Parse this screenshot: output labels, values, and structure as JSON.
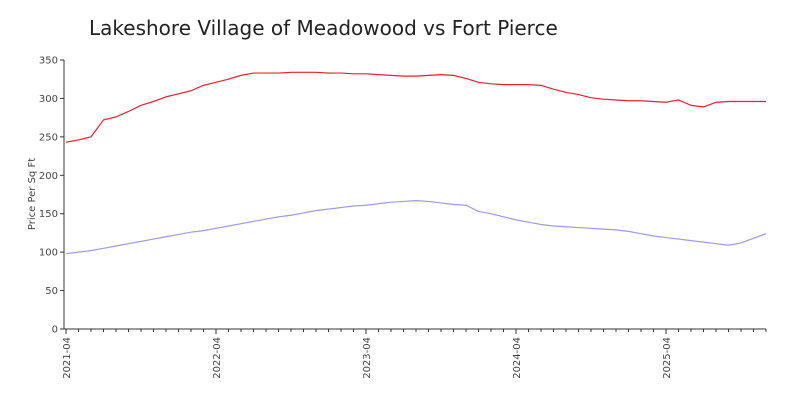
{
  "chart_data": {
    "type": "line",
    "title": "Lakeshore Village of Meadowood vs Fort Pierce",
    "xlabel": "",
    "ylabel": "Price Per Sq Ft",
    "ylim": [
      0,
      350
    ],
    "yticks": [
      0,
      50,
      100,
      150,
      200,
      250,
      300,
      350
    ],
    "xticks": [
      "2021-04",
      "2022-04",
      "2023-04",
      "2024-04",
      "2025-04"
    ],
    "grid": false,
    "legend": "none",
    "x": [
      "2021-04",
      "2021-05",
      "2021-06",
      "2021-07",
      "2021-08",
      "2021-09",
      "2021-10",
      "2021-11",
      "2021-12",
      "2022-01",
      "2022-02",
      "2022-03",
      "2022-04",
      "2022-05",
      "2022-06",
      "2022-07",
      "2022-08",
      "2022-09",
      "2022-10",
      "2022-11",
      "2022-12",
      "2023-01",
      "2023-02",
      "2023-03",
      "2023-04",
      "2023-05",
      "2023-06",
      "2023-07",
      "2023-08",
      "2023-09",
      "2023-10",
      "2023-11",
      "2023-12",
      "2024-01",
      "2024-02",
      "2024-03",
      "2024-04",
      "2024-05",
      "2024-06",
      "2024-07",
      "2024-08",
      "2024-09",
      "2024-10",
      "2024-11",
      "2024-12",
      "2025-01",
      "2025-02",
      "2025-03",
      "2025-04",
      "2025-05",
      "2025-06",
      "2025-07",
      "2025-08",
      "2025-09",
      "2025-10",
      "2025-11",
      "2025-12"
    ],
    "series": [
      {
        "color": "#e8202a",
        "values": [
          243,
          246,
          250,
          272,
          276,
          283,
          291,
          296,
          302,
          306,
          310,
          317,
          321,
          325,
          330,
          333,
          333,
          333,
          334,
          334,
          334,
          333,
          333,
          332,
          332,
          331,
          330,
          329,
          329,
          330,
          331,
          330,
          326,
          321,
          319,
          318,
          318,
          318,
          317,
          312,
          308,
          305,
          301,
          299,
          298,
          297,
          297,
          296,
          295,
          298,
          291,
          289,
          295,
          296,
          296,
          296,
          296
        ]
      },
      {
        "color": "#9a9ae6",
        "values": [
          98,
          100,
          102,
          105,
          108,
          111,
          114,
          117,
          120,
          123,
          126,
          128,
          131,
          134,
          137,
          140,
          143,
          146,
          148,
          151,
          154,
          156,
          158,
          160,
          161,
          163,
          165,
          166,
          167,
          166,
          164,
          162,
          161,
          153,
          150,
          146,
          142,
          139,
          136,
          134,
          133,
          132,
          131,
          130,
          129,
          127,
          124,
          121,
          119,
          117,
          115,
          113,
          111,
          109,
          112,
          118,
          124
        ]
      }
    ]
  }
}
